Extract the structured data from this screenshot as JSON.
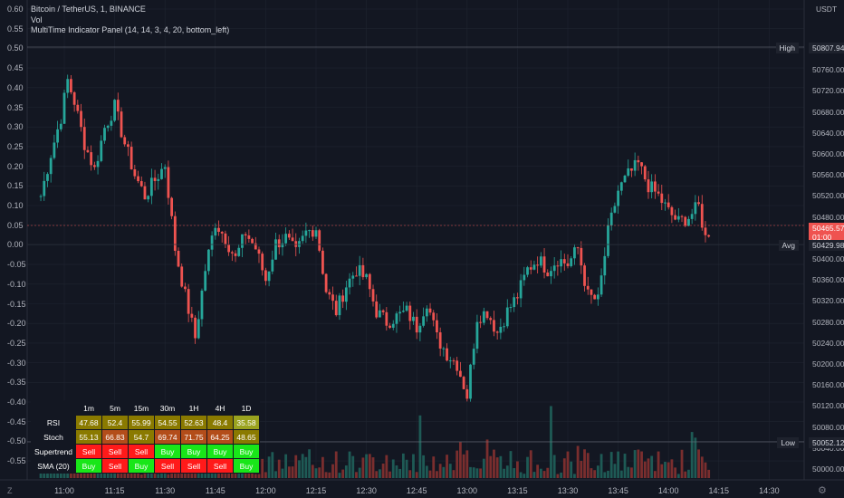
{
  "legend": {
    "line1": "Bitcoin / TetherUS, 1, BINANCE",
    "line2": "Vol",
    "line3": "MultiTime Indicator Panel (14, 14, 3, 4, 20, bottom_left)"
  },
  "currency": "USDT",
  "left_axis": [
    "0.60",
    "0.55",
    "0.50",
    "0.45",
    "0.40",
    "0.35",
    "0.30",
    "0.25",
    "0.20",
    "0.15",
    "0.10",
    "0.05",
    "0.00",
    "-0.05",
    "-0.10",
    "-0.15",
    "-0.20",
    "-0.25",
    "-0.30",
    "-0.35",
    "-0.40",
    "-0.45",
    "-0.50",
    "-0.55"
  ],
  "right_axis": [
    "50800.00",
    "50760.00",
    "50720.00",
    "50680.00",
    "50640.00",
    "50600.00",
    "50560.00",
    "50520.00",
    "50480.00",
    "50440.00",
    "50400.00",
    "50360.00",
    "50320.00",
    "50280.00",
    "50240.00",
    "50200.00",
    "50160.00",
    "50120.00",
    "50080.00",
    "50040.00",
    "50000.00"
  ],
  "price_tags": {
    "high_label": "High",
    "high_value": "50807.94",
    "current_value": "50465.57",
    "countdown": "01:00",
    "avg_label": "Avg",
    "avg_value": "50429.98",
    "low_label": "Low",
    "low_value": "50052.12"
  },
  "time_axis": [
    "11:00",
    "11:15",
    "11:30",
    "11:45",
    "12:00",
    "12:15",
    "12:30",
    "12:45",
    "13:00",
    "13:15",
    "13:30",
    "13:45",
    "14:00",
    "14:15",
    "14:30"
  ],
  "corner": {
    "z": "Z",
    "gear": "⚙"
  },
  "table": {
    "headers": [
      "1m",
      "5m",
      "15m",
      "30m",
      "1H",
      "4H",
      "1D"
    ],
    "rows": [
      {
        "label": "RSI",
        "cells": [
          "47.68",
          "52.4",
          "55.99",
          "54.55",
          "52.63",
          "48.4",
          "35.58"
        ]
      },
      {
        "label": "Stoch",
        "cells": [
          "55.13",
          "66.83",
          "54.7",
          "69.74",
          "71.75",
          "64.25",
          "48.65"
        ]
      },
      {
        "label": "Supertrend",
        "cells": [
          "Sell",
          "Sell",
          "Sell",
          "Buy",
          "Buy",
          "Buy",
          "Buy"
        ]
      },
      {
        "label": "SMA (20)",
        "cells": [
          "Buy",
          "Sell",
          "Buy",
          "Sell",
          "Sell",
          "Sell",
          "Buy"
        ]
      }
    ]
  },
  "colors": {
    "up": "#26a69a",
    "down": "#ef5350",
    "vol_up": "#1e5a55",
    "vol_down": "#7a2e2e",
    "bg": "#131722",
    "grid": "#1f2430"
  },
  "chart_data": {
    "type": "candlestick",
    "symbol": "Bitcoin / TetherUS",
    "interval": "1",
    "exchange": "BINANCE",
    "y_range": [
      50000,
      50810
    ],
    "x_range": [
      "10:55",
      "14:35"
    ],
    "high": 50807.94,
    "low": 50052.12,
    "avg": 50429.98,
    "last": 50465.57,
    "close_path": [
      [
        "10:53",
        50520
      ],
      [
        "10:56",
        50600
      ],
      [
        "10:59",
        50670
      ],
      [
        "11:01",
        50740
      ],
      [
        "11:03",
        50700
      ],
      [
        "11:06",
        50620
      ],
      [
        "11:09",
        50570
      ],
      [
        "11:12",
        50650
      ],
      [
        "11:15",
        50690
      ],
      [
        "11:18",
        50620
      ],
      [
        "11:21",
        50560
      ],
      [
        "11:24",
        50520
      ],
      [
        "11:27",
        50550
      ],
      [
        "11:30",
        50580
      ],
      [
        "11:33",
        50420
      ],
      [
        "11:36",
        50330
      ],
      [
        "11:39",
        50250
      ],
      [
        "11:42",
        50380
      ],
      [
        "11:45",
        50470
      ],
      [
        "11:48",
        50440
      ],
      [
        "11:51",
        50400
      ],
      [
        "11:54",
        50450
      ],
      [
        "11:57",
        50420
      ],
      [
        "12:00",
        50360
      ],
      [
        "12:03",
        50430
      ],
      [
        "12:06",
        50440
      ],
      [
        "12:09",
        50410
      ],
      [
        "12:12",
        50450
      ],
      [
        "12:15",
        50460
      ],
      [
        "12:18",
        50340
      ],
      [
        "12:21",
        50300
      ],
      [
        "12:24",
        50350
      ],
      [
        "12:27",
        50380
      ],
      [
        "12:30",
        50360
      ],
      [
        "12:33",
        50300
      ],
      [
        "12:36",
        50280
      ],
      [
        "12:39",
        50290
      ],
      [
        "12:42",
        50300
      ],
      [
        "12:45",
        50270
      ],
      [
        "12:48",
        50320
      ],
      [
        "12:51",
        50250
      ],
      [
        "12:54",
        50220
      ],
      [
        "12:57",
        50200
      ],
      [
        "13:00",
        50140
      ],
      [
        "13:03",
        50290
      ],
      [
        "13:06",
        50300
      ],
      [
        "13:09",
        50260
      ],
      [
        "13:12",
        50300
      ],
      [
        "13:15",
        50330
      ],
      [
        "13:18",
        50380
      ],
      [
        "13:21",
        50400
      ],
      [
        "13:24",
        50380
      ],
      [
        "13:27",
        50400
      ],
      [
        "13:30",
        50390
      ],
      [
        "13:33",
        50420
      ],
      [
        "13:36",
        50330
      ],
      [
        "13:39",
        50320
      ],
      [
        "13:42",
        50450
      ],
      [
        "13:45",
        50530
      ],
      [
        "13:48",
        50560
      ],
      [
        "13:51",
        50580
      ],
      [
        "13:54",
        50540
      ],
      [
        "13:57",
        50520
      ],
      [
        "14:00",
        50490
      ],
      [
        "14:03",
        50470
      ],
      [
        "14:06",
        50480
      ],
      [
        "14:09",
        50500
      ],
      [
        "14:11",
        50440
      ],
      [
        "14:13",
        50465
      ]
    ]
  }
}
